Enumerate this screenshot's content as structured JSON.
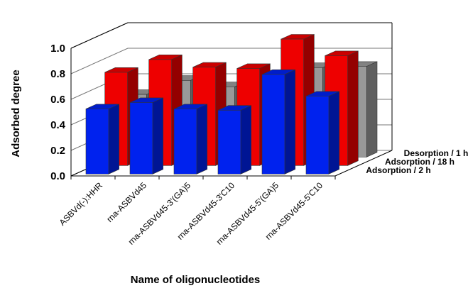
{
  "chart_data": {
    "type": "bar",
    "subtype": "3d-grouped-bar",
    "categories": [
      "ASBVd(-):HHR",
      "rna-ASBVd45",
      "rna-ASBVd45-3'(GA)5",
      "rna-ASBVd45-3'C10",
      "rna-ASBVd45-5'(GA)5",
      "rna-ASBVd45-5'C10"
    ],
    "series": [
      {
        "name": "Adsorption / 2 h",
        "color": "#0022ee",
        "values": [
          0.51,
          0.56,
          0.51,
          0.5,
          0.78,
          0.61
        ]
      },
      {
        "name": "Adsorption / 18 h",
        "color": "#ee0000",
        "values": [
          0.73,
          0.83,
          0.77,
          0.76,
          0.99,
          0.86
        ]
      },
      {
        "name": "Desorption / 1 h",
        "color": "#999999",
        "values": [
          0.49,
          0.6,
          0.55,
          0.55,
          0.7,
          0.71
        ]
      }
    ],
    "xlabel": "Name of oligonucleotides",
    "ylabel": "Adsorbed degree",
    "ylim": [
      0,
      1.0
    ],
    "yticks": [
      "0.0",
      "0.2",
      "0.4",
      "0.6",
      "0.8",
      "1.0"
    ],
    "grid": true,
    "legend": "series labels along depth axis at right"
  }
}
